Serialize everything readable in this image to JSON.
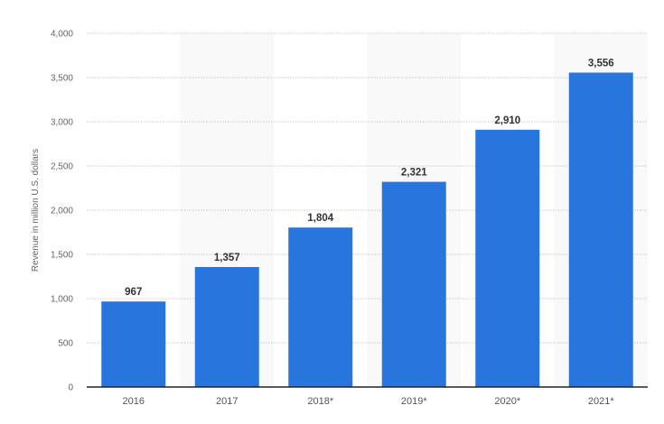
{
  "chart_data": {
    "type": "bar",
    "title": "",
    "xlabel": "",
    "ylabel": "Revenue in million U.S. dollars",
    "categories": [
      "2016",
      "2017",
      "2018*",
      "2019*",
      "2020*",
      "2021*"
    ],
    "values": [
      967,
      1357,
      1804,
      2321,
      2910,
      3556
    ],
    "data_labels": [
      "967",
      "1,357",
      "1,804",
      "2,321",
      "2,910",
      "3,556"
    ],
    "ylim": [
      0,
      4000
    ],
    "yticks": [
      0,
      500,
      1000,
      1500,
      2000,
      2500,
      3000,
      3500,
      4000
    ],
    "ytick_labels": [
      "0",
      "500",
      "1,000",
      "1,500",
      "2,000",
      "2,500",
      "3,000",
      "3,500",
      "4,000"
    ],
    "grid": true,
    "alternating_bands": true,
    "colors": {
      "bar": "#2876dd",
      "band": "#f9f9f9",
      "grid": "#c8c8c8",
      "tick_text": "#666666",
      "label_text": "#333333"
    }
  }
}
